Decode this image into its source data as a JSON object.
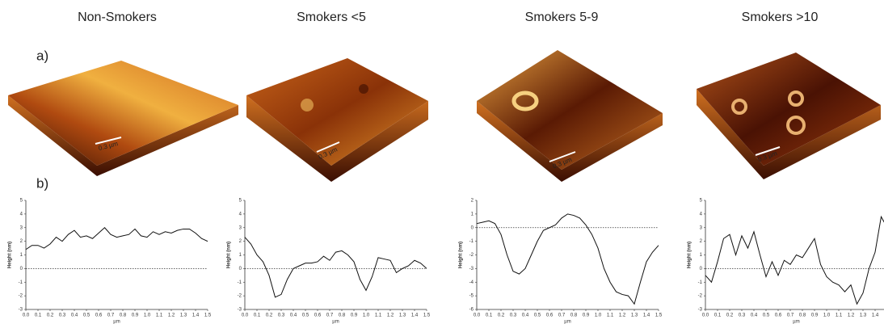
{
  "panel_labels": [
    "a)",
    "b)"
  ],
  "images": [
    {
      "scale_bar": "0.3 µm"
    },
    {
      "scale_bar": "0.3 µm"
    },
    {
      "scale_bar": "0.3 µm"
    },
    {
      "scale_bar": "0.3 µm"
    }
  ],
  "chart_data": [
    {
      "type": "line",
      "title": "Non-Smokers",
      "x_label": "µm",
      "y_label": "Height (nm)",
      "reference_line": 0,
      "color": "#111111",
      "x": [
        0,
        0.05,
        0.1,
        0.15,
        0.2,
        0.25,
        0.3,
        0.35,
        0.4,
        0.45,
        0.5,
        0.55,
        0.6,
        0.65,
        0.7,
        0.75,
        0.8,
        0.85,
        0.9,
        0.95,
        1.0,
        1.05,
        1.1,
        1.15,
        1.2,
        1.25,
        1.3,
        1.35,
        1.4,
        1.45,
        1.5
      ],
      "values": [
        1.4,
        1.7,
        1.7,
        1.5,
        1.8,
        2.3,
        2.0,
        2.5,
        2.8,
        2.3,
        2.4,
        2.2,
        2.6,
        3.0,
        2.5,
        2.3,
        2.4,
        2.5,
        2.9,
        2.4,
        2.3,
        2.7,
        2.5,
        2.7,
        2.6,
        2.8,
        2.9,
        2.9,
        2.6,
        2.2,
        2.0
      ],
      "xlim": [
        0,
        1.5
      ],
      "ylim": [
        -3,
        5
      ],
      "xticks": [
        {
          "value": 0,
          "label": "0.0"
        },
        0.1,
        0.2,
        0.3,
        0.4,
        0.5,
        0.6,
        0.7,
        0.8,
        0.9,
        {
          "value": 1,
          "label": "1.0"
        },
        1.1,
        1.2,
        1.3,
        1.4,
        1.5
      ],
      "yticks": [
        -3,
        -2,
        -1,
        0,
        1,
        2,
        3,
        4,
        5
      ]
    },
    {
      "type": "line",
      "title": "Smokers <5",
      "x_label": "µm",
      "y_label": "Height (nm)",
      "reference_line": 0,
      "color": "#111111",
      "x": [
        0,
        0.05,
        0.1,
        0.15,
        0.2,
        0.25,
        0.3,
        0.35,
        0.4,
        0.45,
        0.5,
        0.55,
        0.6,
        0.65,
        0.7,
        0.75,
        0.8,
        0.85,
        0.9,
        0.95,
        1.0,
        1.05,
        1.1,
        1.15,
        1.2,
        1.25,
        1.3,
        1.35,
        1.4,
        1.45,
        1.5
      ],
      "values": [
        2.3,
        1.8,
        1.0,
        0.5,
        -0.5,
        -2.1,
        -1.9,
        -0.8,
        0.0,
        0.2,
        0.4,
        0.4,
        0.5,
        0.9,
        0.6,
        1.2,
        1.3,
        1.0,
        0.5,
        -0.8,
        -1.6,
        -0.6,
        0.8,
        0.7,
        0.6,
        -0.3,
        0.0,
        0.2,
        0.6,
        0.4,
        0.0
      ],
      "xlim": [
        0,
        1.5
      ],
      "ylim": [
        -3,
        5
      ],
      "xticks": [
        {
          "value": 0,
          "label": "0.0"
        },
        0.1,
        0.2,
        0.3,
        0.4,
        0.5,
        0.6,
        0.7,
        0.8,
        0.9,
        {
          "value": 1,
          "label": "1.0"
        },
        1.1,
        1.2,
        1.3,
        1.4,
        1.5
      ],
      "yticks": [
        -3,
        -2,
        -1,
        0,
        1,
        2,
        3,
        4,
        5
      ]
    },
    {
      "type": "line",
      "title": "Smokers 5-9",
      "x_label": "µm",
      "y_label": "Height (nm)",
      "reference_line": 0,
      "color": "#111111",
      "x": [
        0,
        0.05,
        0.1,
        0.15,
        0.2,
        0.25,
        0.3,
        0.35,
        0.4,
        0.45,
        0.5,
        0.55,
        0.6,
        0.65,
        0.7,
        0.75,
        0.8,
        0.85,
        0.9,
        0.95,
        1.0,
        1.05,
        1.1,
        1.15,
        1.2,
        1.25,
        1.3,
        1.35,
        1.4,
        1.45,
        1.5
      ],
      "values": [
        0.3,
        0.4,
        0.5,
        0.3,
        -0.5,
        -2.0,
        -3.2,
        -3.4,
        -3.0,
        -2.0,
        -1.0,
        -0.2,
        0.0,
        0.2,
        0.7,
        1.0,
        0.9,
        0.7,
        0.2,
        -0.5,
        -1.5,
        -3.0,
        -4.0,
        -4.7,
        -4.9,
        -5.0,
        -5.6,
        -4.0,
        -2.5,
        -1.8,
        -1.3
      ],
      "xlim": [
        0,
        1.5
      ],
      "ylim": [
        -6,
        2
      ],
      "xticks": [
        {
          "value": 0,
          "label": "0.0"
        },
        0.1,
        0.2,
        0.3,
        0.4,
        0.5,
        0.6,
        0.7,
        0.8,
        0.9,
        {
          "value": 1,
          "label": "1.0"
        },
        1.1,
        1.2,
        1.3,
        1.4,
        1.5
      ],
      "yticks": [
        -6,
        -5,
        -4,
        -3,
        -2,
        -1,
        0,
        1,
        2
      ]
    },
    {
      "type": "line",
      "title": "Smokers >10",
      "x_label": "µm",
      "y_label": "Height (nm)",
      "reference_line": 0,
      "color": "#111111",
      "x": [
        0,
        0.05,
        0.1,
        0.15,
        0.2,
        0.25,
        0.3,
        0.35,
        0.4,
        0.45,
        0.5,
        0.55,
        0.6,
        0.65,
        0.7,
        0.75,
        0.8,
        0.85,
        0.9,
        0.95,
        1.0,
        1.05,
        1.1,
        1.15,
        1.2,
        1.25,
        1.3,
        1.35,
        1.4,
        1.45,
        1.5
      ],
      "values": [
        -0.5,
        -1.0,
        0.5,
        2.2,
        2.5,
        1.0,
        2.4,
        1.5,
        2.7,
        1.0,
        -0.6,
        0.5,
        -0.5,
        0.6,
        0.3,
        1.0,
        0.8,
        1.5,
        2.2,
        0.3,
        -0.6,
        -1.0,
        -1.2,
        -1.7,
        -1.2,
        -2.6,
        -1.8,
        0.0,
        1.2,
        3.8,
        3.0
      ],
      "xlim": [
        0,
        1.5
      ],
      "ylim": [
        -3,
        5
      ],
      "xticks": [
        {
          "value": 0,
          "label": "0.0"
        },
        0.1,
        0.2,
        0.3,
        0.4,
        0.5,
        0.6,
        0.7,
        0.8,
        0.9,
        {
          "value": 1,
          "label": "1.0"
        },
        1.1,
        1.2,
        1.3,
        1.4,
        1.5
      ],
      "yticks": [
        -3,
        -2,
        -1,
        0,
        1,
        2,
        3,
        4,
        5
      ]
    }
  ]
}
